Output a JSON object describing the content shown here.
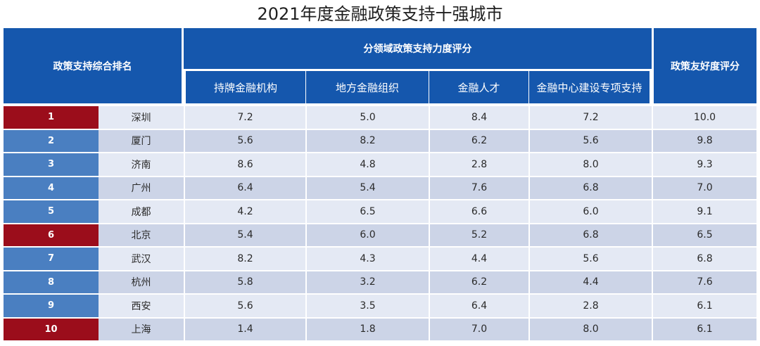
{
  "chart_data": {
    "type": "table",
    "title": "2021年度金融政策支持十强城市",
    "headers": {
      "rank_group": "政策支持综合排名",
      "subscore_group": "分领域政策支持力度评分",
      "subscores": [
        "持牌金融机构",
        "地方金融组织",
        "金融人才",
        "金融中心建设专项支持"
      ],
      "friendliness": "政策友好度评分"
    },
    "rows": [
      {
        "rank": "1",
        "city": "深圳",
        "scores": [
          "7.2",
          "5.0",
          "8.4",
          "7.2"
        ],
        "friendliness": "10.0",
        "highlight": true
      },
      {
        "rank": "2",
        "city": "厦门",
        "scores": [
          "5.6",
          "8.2",
          "6.2",
          "5.6"
        ],
        "friendliness": "9.8",
        "highlight": false
      },
      {
        "rank": "3",
        "city": "济南",
        "scores": [
          "8.6",
          "4.8",
          "2.8",
          "8.0"
        ],
        "friendliness": "9.3",
        "highlight": false
      },
      {
        "rank": "4",
        "city": "广州",
        "scores": [
          "6.4",
          "5.4",
          "7.6",
          "6.8"
        ],
        "friendliness": "7.0",
        "highlight": false
      },
      {
        "rank": "5",
        "city": "成都",
        "scores": [
          "4.2",
          "6.5",
          "6.6",
          "6.0"
        ],
        "friendliness": "9.1",
        "highlight": false
      },
      {
        "rank": "6",
        "city": "北京",
        "scores": [
          "5.4",
          "6.0",
          "5.2",
          "6.8"
        ],
        "friendliness": "6.5",
        "highlight": true
      },
      {
        "rank": "7",
        "city": "武汉",
        "scores": [
          "8.2",
          "4.3",
          "4.4",
          "5.6"
        ],
        "friendliness": "6.8",
        "highlight": false
      },
      {
        "rank": "8",
        "city": "杭州",
        "scores": [
          "5.8",
          "3.2",
          "6.2",
          "4.4"
        ],
        "friendliness": "7.6",
        "highlight": false
      },
      {
        "rank": "9",
        "city": "西安",
        "scores": [
          "5.6",
          "3.5",
          "6.4",
          "2.8"
        ],
        "friendliness": "6.1",
        "highlight": false
      },
      {
        "rank": "10",
        "city": "上海",
        "scores": [
          "1.4",
          "1.8",
          "7.0",
          "8.0"
        ],
        "friendliness": "6.1",
        "highlight": true
      }
    ]
  },
  "colors": {
    "header_bg": "#1557ad",
    "rank_blue": "#4a7fc1",
    "rank_red": "#9b0d1b",
    "row_light": "#e4e9f4",
    "row_dark": "#ccd4e7"
  }
}
